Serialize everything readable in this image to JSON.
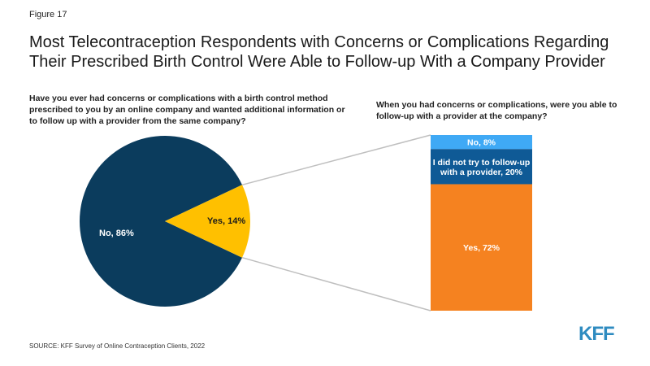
{
  "figure_label": "Figure 17",
  "title_line1": "Most Telecontraception Respondents with Concerns or Complications Regarding",
  "title_line2": "Their Prescribed Birth Control Were Able to Follow-up With a Company Provider",
  "left_question": "Have you ever had concerns or complications with a birth control method prescribed to you by an online company and wanted additional information or to follow up with a provider from the same company?",
  "right_question": "When you had concerns or complications, were you able to follow-up with a provider at the company?",
  "source": "SOURCE: KFF Survey of Online Contraception Clients, 2022",
  "logo": "KFF",
  "colors": {
    "navy": "#0b3c5d",
    "gold": "#ffc000",
    "light_blue": "#3fa9f5",
    "mid_blue": "#0f5a96",
    "orange": "#f58220",
    "connector": "#bfbfbf"
  },
  "chart_data": [
    {
      "type": "pie",
      "slices": [
        {
          "label": "No, 86%",
          "value": 86,
          "color": "#0b3c5d"
        },
        {
          "label": "Yes, 14%",
          "value": 14,
          "color": "#ffc000"
        }
      ]
    },
    {
      "type": "bar",
      "stacked": true,
      "segments": [
        {
          "label": "No, 8%",
          "value": 8,
          "color": "#3fa9f5"
        },
        {
          "label": "I did not try to follow-up with a provider, 20%",
          "label_lines": [
            "I did not try to follow-up",
            "with a provider, 20%"
          ],
          "value": 20,
          "color": "#0f5a96"
        },
        {
          "label": "Yes, 72%",
          "value": 72,
          "color": "#f58220"
        }
      ]
    }
  ]
}
